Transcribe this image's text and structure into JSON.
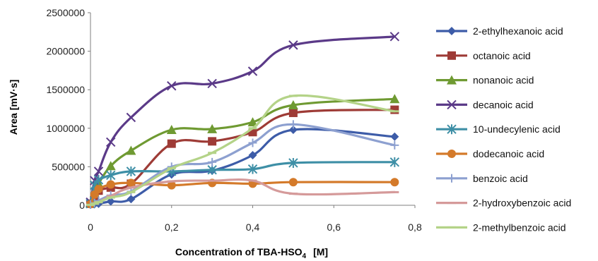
{
  "chart_data": {
    "type": "line",
    "xlabel_main": "Concentration of TBA-HSO",
    "xlabel_sub": "4",
    "xlabel_unit": "[M]",
    "ylabel": "Area [mV·s]",
    "xlim": [
      0,
      0.8
    ],
    "ylim": [
      0,
      2500000
    ],
    "x_ticks": [
      "0",
      "0,2",
      "0,4",
      "0,6",
      "0,8"
    ],
    "y_ticks": [
      "0",
      "500000",
      "1000000",
      "1500000",
      "2000000",
      "2500000"
    ],
    "grid": false,
    "legend_position": "right",
    "x": [
      0,
      0.01,
      0.02,
      0.05,
      0.1,
      0.2,
      0.3,
      0.4,
      0.5,
      0.75
    ],
    "series": [
      {
        "name": "2-ethylhexanoic acid",
        "color": "#3d5ca8",
        "marker": "diamond",
        "values": [
          10000,
          15000,
          20000,
          50000,
          80000,
          400000,
          450000,
          650000,
          980000,
          890000
        ]
      },
      {
        "name": "octanoic acid",
        "color": "#9e3b36",
        "marker": "square",
        "values": [
          20000,
          100000,
          190000,
          230000,
          280000,
          800000,
          830000,
          950000,
          1200000,
          1240000
        ]
      },
      {
        "name": "nonanoic acid",
        "color": "#6f9a32",
        "marker": "triangle",
        "values": [
          30000,
          160000,
          280000,
          510000,
          710000,
          980000,
          990000,
          1080000,
          1300000,
          1380000
        ]
      },
      {
        "name": "decanoic acid",
        "color": "#5b3a88",
        "marker": "x",
        "values": [
          40000,
          320000,
          440000,
          820000,
          1140000,
          1550000,
          1580000,
          1740000,
          2080000,
          2190000
        ]
      },
      {
        "name": "10-undecylenic acid",
        "color": "#3e8fa6",
        "marker": "star",
        "values": [
          20000,
          260000,
          330000,
          390000,
          440000,
          440000,
          460000,
          470000,
          550000,
          560000
        ]
      },
      {
        "name": "dodecanoic acid",
        "color": "#d47a2a",
        "marker": "circle",
        "values": [
          15000,
          140000,
          210000,
          270000,
          290000,
          260000,
          290000,
          280000,
          300000,
          300000
        ]
      },
      {
        "name": "benzoic acid",
        "color": "#8da0d0",
        "marker": "plus",
        "values": [
          10000,
          30000,
          60000,
          130000,
          180000,
          500000,
          560000,
          810000,
          1050000,
          780000
        ]
      },
      {
        "name": "2-hydroxybenzoic acid",
        "color": "#d59a9a",
        "marker": "dash",
        "values": [
          5000,
          20000,
          40000,
          120000,
          230000,
          310000,
          320000,
          320000,
          150000,
          170000
        ]
      },
      {
        "name": "2-methylbenzoic acid",
        "color": "#b4d388",
        "marker": "dash",
        "values": [
          5000,
          20000,
          40000,
          100000,
          170000,
          480000,
          680000,
          1000000,
          1420000,
          1220000
        ]
      }
    ]
  }
}
